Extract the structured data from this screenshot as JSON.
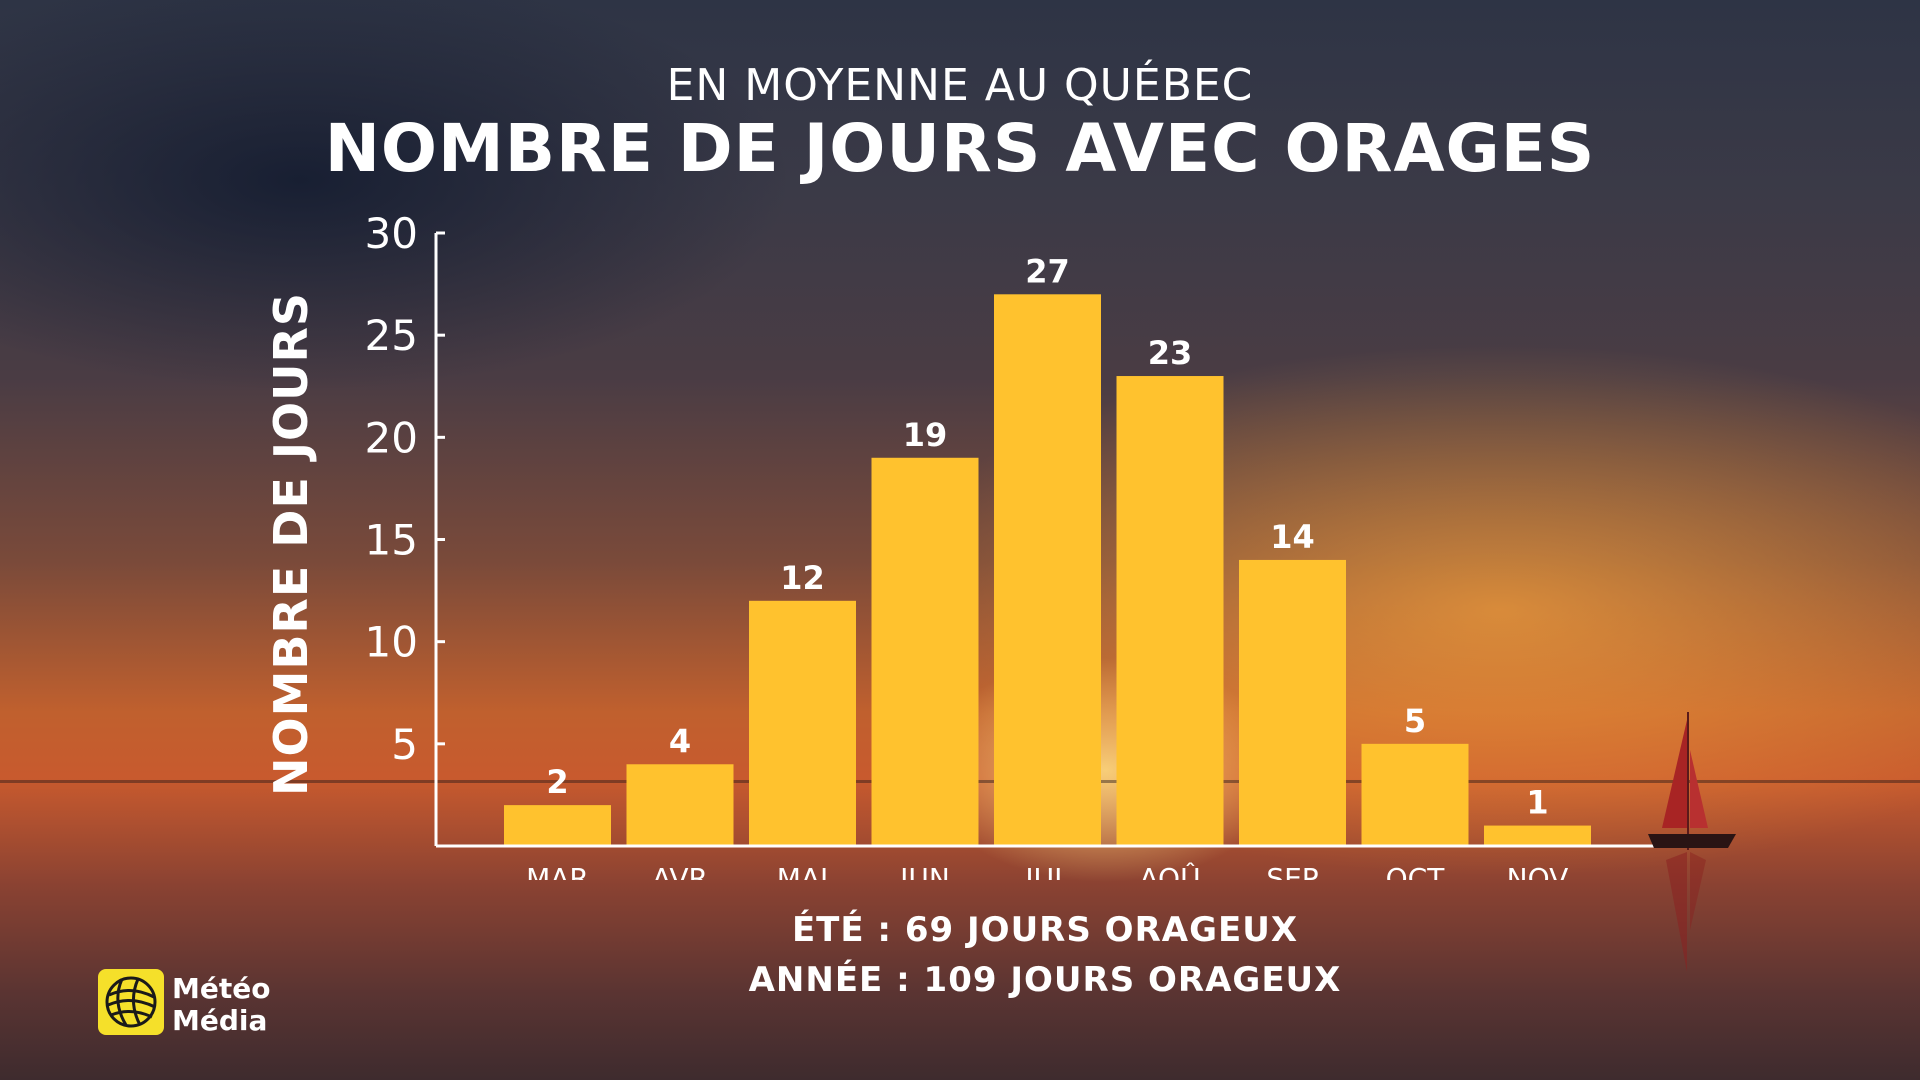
{
  "header": {
    "subtitle": "EN MOYENNE AU QUÉBEC",
    "title": "NOMBRE DE JOURS AVEC ORAGES"
  },
  "chart_data": {
    "type": "bar",
    "categories": [
      "MAR",
      "AVR",
      "MAI",
      "JUN",
      "JUL",
      "AOÛ",
      "SEP",
      "OCT",
      "NOV"
    ],
    "values": [
      2,
      4,
      12,
      19,
      27,
      23,
      14,
      5,
      1
    ],
    "ylabel": "NOMBRE DE JOURS",
    "ylim": [
      0,
      30
    ],
    "yticks": [
      5,
      10,
      15,
      20,
      25,
      30
    ],
    "grid": false,
    "legend": "none",
    "bar_color": "#FFC22E",
    "data_labels": true
  },
  "footer": {
    "summer": "ÉTÉ : 69 JOURS ORAGEUX",
    "year": "ANNÉE : 109 JOURS ORAGEUX"
  },
  "brand": {
    "line1": "Météo",
    "line2": "Média",
    "icon": "globe-icon",
    "color": "#F5E02A"
  }
}
